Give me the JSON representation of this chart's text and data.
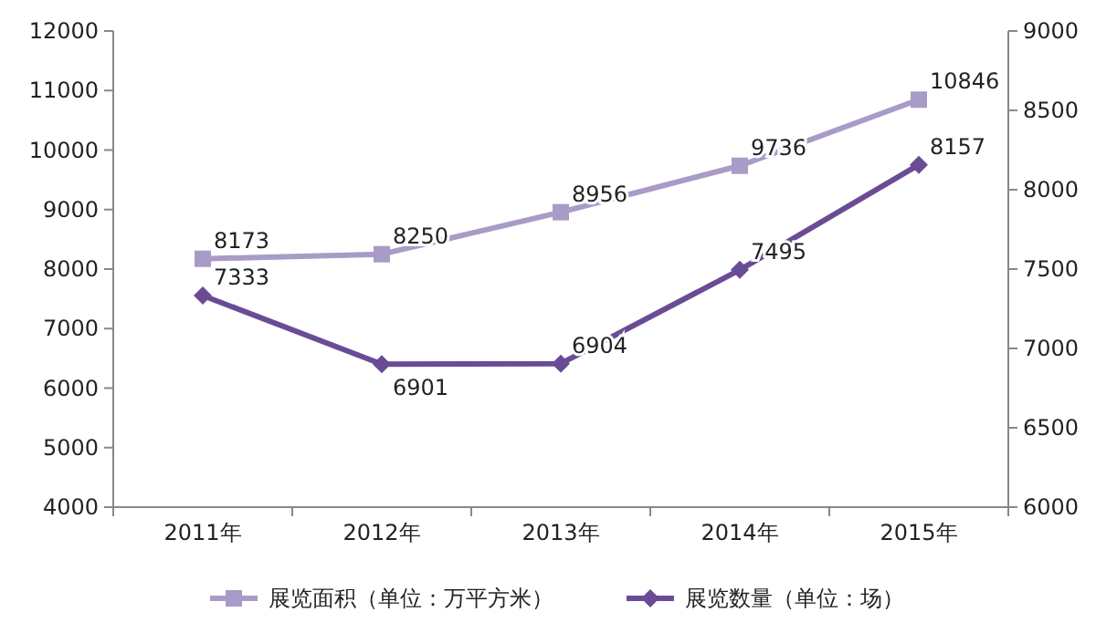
{
  "chart_data": {
    "type": "line",
    "categories": [
      "2011年",
      "2012年",
      "2013年",
      "2014年",
      "2015年"
    ],
    "series": [
      {
        "name": "展览面积（单位：万平方米）",
        "color": "#a99bc7",
        "marker": "square",
        "values": [
          8173,
          8250,
          8956,
          9736,
          10846
        ]
      },
      {
        "name": "展览数量（单位：场）",
        "color": "#6a4c96",
        "marker": "diamond",
        "axis": "y2",
        "values": [
          7333,
          6901,
          6904,
          7495,
          8157
        ]
      }
    ],
    "ylim": [
      4000,
      12000
    ],
    "yticks": [
      4000,
      5000,
      6000,
      7000,
      8000,
      9000,
      10000,
      11000,
      12000
    ],
    "y2lim": [
      6000,
      9000
    ],
    "y2ticks": [
      6000,
      6500,
      7000,
      7500,
      8000,
      8500,
      9000
    ],
    "data_labels": true,
    "legend": "bottom",
    "grid": false
  }
}
